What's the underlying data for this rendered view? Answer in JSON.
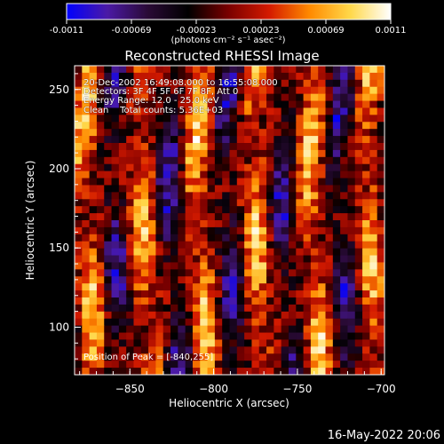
{
  "colors": {
    "background": "#000000",
    "text": "#ffffff",
    "colormap": [
      "#0000ff",
      "#4b1aa6",
      "#2a0a36",
      "#000000",
      "#7a0000",
      "#d41a00",
      "#ff8a00",
      "#ffd84a",
      "#ffffff"
    ]
  },
  "colorbar": {
    "tick_labels": [
      "-0.0011",
      "-0.00069",
      "-0.00023",
      "0.00023",
      "0.00069",
      "0.0011"
    ],
    "units": "(photons cm⁻² s⁻¹ asec⁻²)",
    "range": [
      -0.0011,
      0.0011
    ]
  },
  "chart_data": {
    "type": "heatmap",
    "title": "Reconstructed RHESSI Image",
    "xlabel": "Heliocentric X (arcsec)",
    "ylabel": "Heliocentric Y (arcsec)",
    "xlim": [
      -883,
      -698
    ],
    "ylim": [
      70,
      265
    ],
    "x_ticks": [
      -850,
      -800,
      -750,
      -700
    ],
    "y_ticks": [
      100,
      150,
      200,
      250
    ],
    "x_tick_labels": [
      "−850",
      "−800",
      "−750",
      "−700"
    ],
    "y_tick_labels": [
      "100",
      "150",
      "200",
      "250"
    ],
    "grid": false,
    "pattern": "vertical striations of alternating positive (red/yellow) and negative (blue/purple) intensity",
    "peak_position": [
      -840,
      255
    ],
    "annotations": [
      "20-Dec-2002 16:49:08.000 to 16:55:08.000",
      "Detectors: 3F 4F 5F 6F 7F 8F, Att 0",
      "Energy Range: 12.0 - 25.0 keV",
      "Clean    Total counts: 5.36E+03"
    ],
    "peak_label": "Position of Peak = [-840,255]"
  },
  "footer": "16-May-2022 20:06"
}
